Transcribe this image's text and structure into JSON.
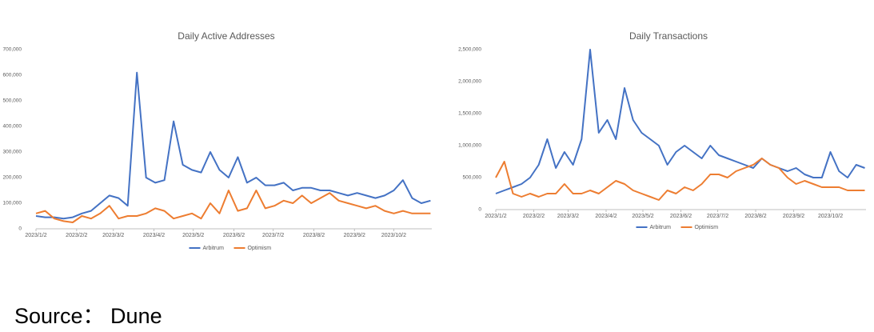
{
  "chart_data": [
    {
      "type": "line",
      "title": "Daily Active Addresses",
      "x": [
        "2023/1/2",
        "2023/1/9",
        "2023/1/16",
        "2023/1/23",
        "2023/1/30",
        "2023/2/6",
        "2023/2/13",
        "2023/2/20",
        "2023/2/27",
        "2023/3/6",
        "2023/3/13",
        "2023/3/20",
        "2023/3/27",
        "2023/4/3",
        "2023/4/10",
        "2023/4/17",
        "2023/4/24",
        "2023/5/1",
        "2023/5/8",
        "2023/5/15",
        "2023/5/22",
        "2023/5/29",
        "2023/6/5",
        "2023/6/12",
        "2023/6/19",
        "2023/6/26",
        "2023/7/3",
        "2023/7/10",
        "2023/7/17",
        "2023/7/24",
        "2023/7/31",
        "2023/8/7",
        "2023/8/14",
        "2023/8/21",
        "2023/8/28",
        "2023/9/4",
        "2023/9/11",
        "2023/9/18",
        "2023/9/25",
        "2023/10/2",
        "2023/10/9",
        "2023/10/16",
        "2023/10/23",
        "2023/10/30"
      ],
      "series": [
        {
          "name": "Arbitrum",
          "color": "#4472c4",
          "values": [
            50000,
            45000,
            45000,
            40000,
            45000,
            60000,
            70000,
            100000,
            130000,
            120000,
            90000,
            610000,
            200000,
            180000,
            190000,
            420000,
            250000,
            230000,
            220000,
            300000,
            230000,
            200000,
            280000,
            180000,
            200000,
            170000,
            170000,
            180000,
            150000,
            160000,
            160000,
            150000,
            150000,
            140000,
            130000,
            140000,
            130000,
            120000,
            130000,
            150000,
            190000,
            120000,
            100000,
            110000
          ]
        },
        {
          "name": "Optimism",
          "color": "#ed7d31",
          "values": [
            60000,
            70000,
            40000,
            30000,
            25000,
            50000,
            40000,
            60000,
            90000,
            40000,
            50000,
            50000,
            60000,
            80000,
            70000,
            40000,
            50000,
            60000,
            40000,
            100000,
            60000,
            150000,
            70000,
            80000,
            150000,
            80000,
            90000,
            110000,
            100000,
            130000,
            100000,
            120000,
            140000,
            110000,
            100000,
            90000,
            80000,
            90000,
            70000,
            60000,
            70000,
            60000,
            60000,
            60000
          ]
        }
      ],
      "xlim": [
        "2023/1/2",
        "2023/10/31"
      ],
      "xticks": [
        "2023/1/2",
        "2023/2/2",
        "2023/3/2",
        "2023/4/2",
        "2023/5/2",
        "2023/6/2",
        "2023/7/2",
        "2023/8/2",
        "2023/9/2",
        "2023/10/2"
      ],
      "ylim": [
        0,
        700000
      ],
      "yticks": [
        0,
        {
          "value": 100000,
          "label": "100,000"
        },
        {
          "value": 200000,
          "label": "200,000"
        },
        {
          "value": 300000,
          "label": "300,000"
        },
        {
          "value": 400000,
          "label": "400,000"
        },
        {
          "value": 500000,
          "label": "500,000"
        },
        {
          "value": 600000,
          "label": "600,000"
        },
        {
          "value": 700000,
          "label": "700,000"
        }
      ],
      "grid": false,
      "legend": "bottom"
    },
    {
      "type": "line",
      "title": "Daily Transactions",
      "x": [
        "2023/1/2",
        "2023/1/9",
        "2023/1/16",
        "2023/1/23",
        "2023/1/30",
        "2023/2/6",
        "2023/2/13",
        "2023/2/20",
        "2023/2/27",
        "2023/3/6",
        "2023/3/13",
        "2023/3/20",
        "2023/3/27",
        "2023/4/3",
        "2023/4/10",
        "2023/4/17",
        "2023/4/24",
        "2023/5/1",
        "2023/5/8",
        "2023/5/15",
        "2023/5/22",
        "2023/5/29",
        "2023/6/5",
        "2023/6/12",
        "2023/6/19",
        "2023/6/26",
        "2023/7/3",
        "2023/7/10",
        "2023/7/17",
        "2023/7/24",
        "2023/7/31",
        "2023/8/7",
        "2023/8/14",
        "2023/8/21",
        "2023/8/28",
        "2023/9/4",
        "2023/9/11",
        "2023/9/18",
        "2023/9/25",
        "2023/10/2",
        "2023/10/9",
        "2023/10/16",
        "2023/10/23",
        "2023/10/30"
      ],
      "series": [
        {
          "name": "Arbitrum",
          "color": "#4472c4",
          "values": [
            250000,
            300000,
            350000,
            400000,
            500000,
            700000,
            1100000,
            650000,
            900000,
            700000,
            1100000,
            2500000,
            1200000,
            1400000,
            1100000,
            1900000,
            1400000,
            1200000,
            1100000,
            1000000,
            700000,
            900000,
            1000000,
            900000,
            800000,
            1000000,
            850000,
            800000,
            750000,
            700000,
            650000,
            800000,
            700000,
            650000,
            600000,
            650000,
            550000,
            500000,
            500000,
            900000,
            600000,
            500000,
            700000,
            650000
          ]
        },
        {
          "name": "Optimism",
          "color": "#ed7d31",
          "values": [
            500000,
            750000,
            250000,
            200000,
            250000,
            200000,
            250000,
            250000,
            400000,
            250000,
            250000,
            300000,
            250000,
            350000,
            450000,
            400000,
            300000,
            250000,
            200000,
            150000,
            300000,
            250000,
            350000,
            300000,
            400000,
            550000,
            550000,
            500000,
            600000,
            650000,
            700000,
            800000,
            700000,
            650000,
            500000,
            400000,
            450000,
            400000,
            350000,
            350000,
            350000,
            300000,
            300000,
            300000
          ]
        }
      ],
      "xlim": [
        "2023/1/2",
        "2023/10/31"
      ],
      "xticks": [
        "2023/1/2",
        "2023/2/2",
        "2023/3/2",
        "2023/4/2",
        "2023/5/2",
        "2023/6/2",
        "2023/7/2",
        "2023/8/2",
        "2023/9/2",
        "2023/10/2"
      ],
      "ylim": [
        0,
        2500000
      ],
      "yticks": [
        0,
        {
          "value": 500000,
          "label": "500,000"
        },
        {
          "value": 1000000,
          "label": "1,000,000"
        },
        {
          "value": 1500000,
          "label": "1,500,000"
        },
        {
          "value": 2000000,
          "label": "2,000,000"
        },
        {
          "value": 2500000,
          "label": "2,500,000"
        }
      ],
      "grid": false,
      "legend": "bottom"
    }
  ],
  "footer": {
    "source": "Source：  Dune"
  }
}
